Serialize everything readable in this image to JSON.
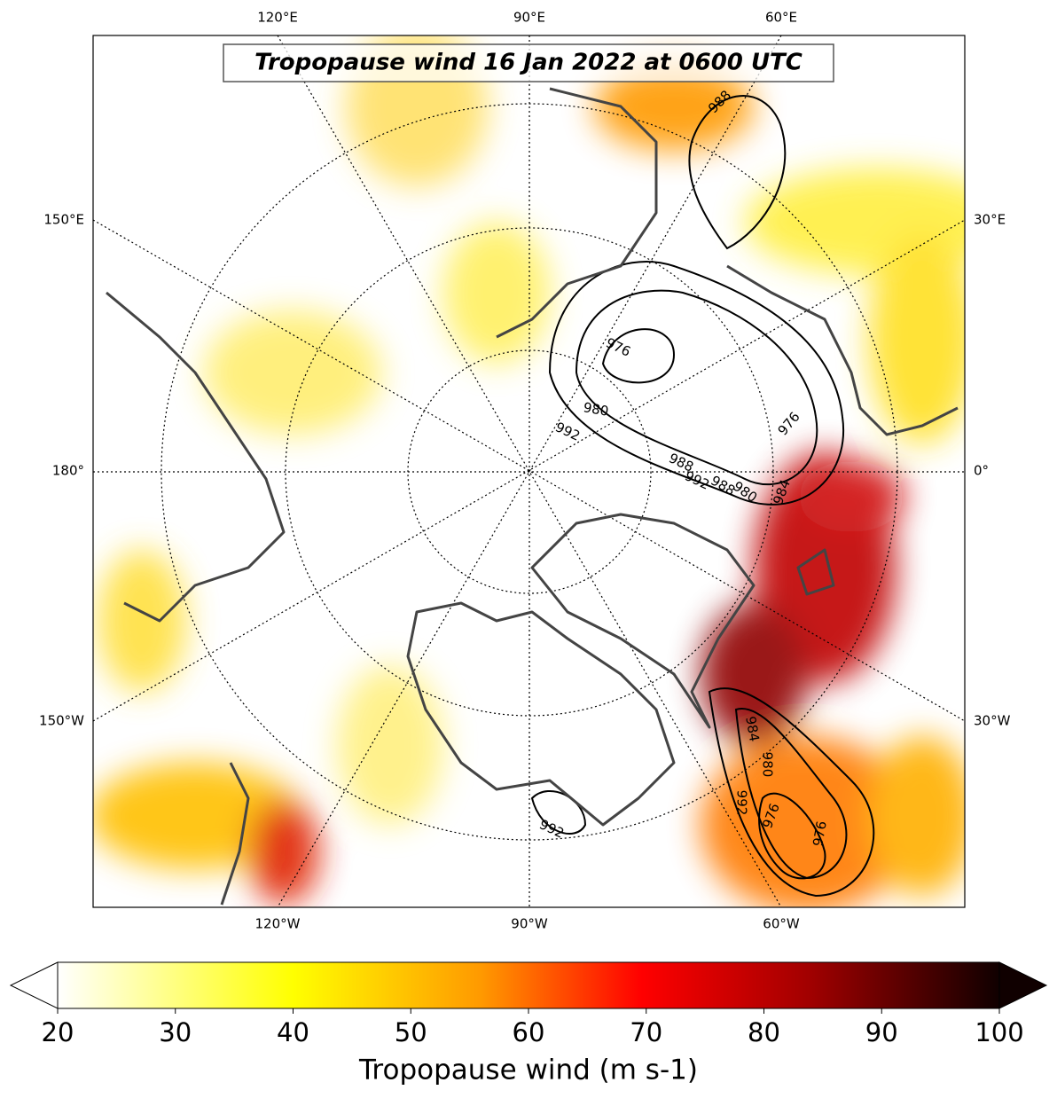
{
  "title": "Tropopause wind 16 Jan 2022 at 0600 UTC",
  "map": {
    "top_labels": [
      "120°E",
      "90°E",
      "60°E"
    ],
    "left_labels": [
      "150°E",
      "180°",
      "150°W"
    ],
    "right_labels": [
      "30°E",
      "0°",
      "30°W"
    ],
    "bottom_labels": [
      "120°W",
      "90°W",
      "60°W"
    ],
    "contour_labels": [
      976,
      980,
      992,
      988,
      992,
      988,
      980,
      984,
      976,
      988,
      984,
      980,
      992,
      976,
      976,
      992
    ]
  },
  "colorbar": {
    "label": "Tropopause wind (m s-1)",
    "lim": [
      20,
      100
    ],
    "ticks": [
      20,
      30,
      40,
      50,
      60,
      70,
      80,
      90,
      100
    ]
  }
}
